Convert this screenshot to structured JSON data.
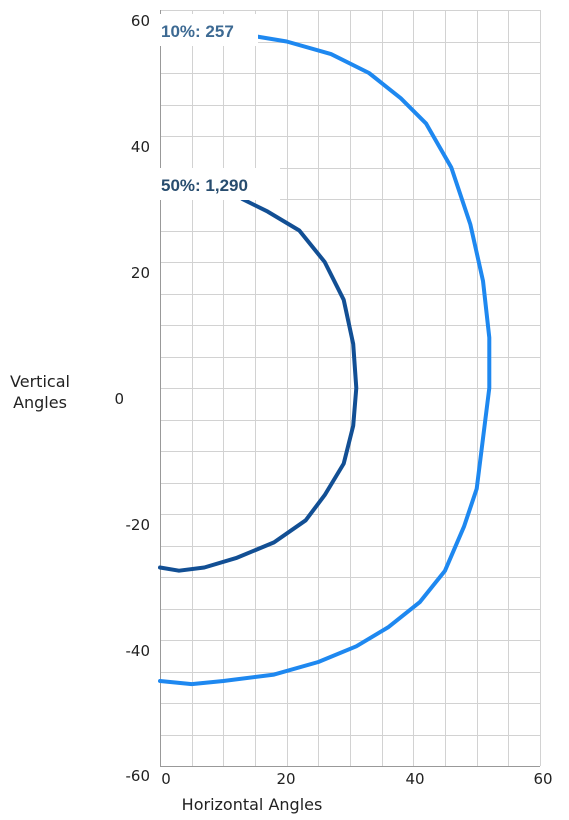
{
  "chart_data": {
    "type": "line",
    "xlabel": "Horizontal Angles",
    "ylabel": [
      "Vertical",
      "Angles"
    ],
    "xlim": [
      0,
      60
    ],
    "ylim": [
      -60,
      60
    ],
    "grid": true,
    "x_ticks": [
      "0",
      "20",
      "40",
      "60"
    ],
    "y_ticks": [
      "60",
      "40",
      "20",
      "0",
      "-20",
      "-40",
      "-60"
    ],
    "series": [
      {
        "name": "10%: 257",
        "color": "#1e88f0",
        "points": [
          [
            14,
            56
          ],
          [
            20,
            55
          ],
          [
            27,
            53
          ],
          [
            33,
            50
          ],
          [
            38,
            46
          ],
          [
            42,
            42
          ],
          [
            46,
            35
          ],
          [
            49,
            26
          ],
          [
            51,
            17
          ],
          [
            52,
            8
          ],
          [
            52,
            0
          ],
          [
            51,
            -8
          ],
          [
            50,
            -16
          ],
          [
            48,
            -22
          ],
          [
            45,
            -29
          ],
          [
            41,
            -34
          ],
          [
            36,
            -38
          ],
          [
            31,
            -41
          ],
          [
            25,
            -43.5
          ],
          [
            18,
            -45.5
          ],
          [
            10,
            -46.5
          ],
          [
            5,
            -47
          ],
          [
            0,
            -46.5
          ]
        ]
      },
      {
        "name": "50%: 1,290",
        "color": "#124f94",
        "points": [
          [
            13,
            30
          ],
          [
            17,
            28
          ],
          [
            22,
            25
          ],
          [
            26,
            20
          ],
          [
            29,
            14
          ],
          [
            30.5,
            7
          ],
          [
            31,
            0
          ],
          [
            30.5,
            -6
          ],
          [
            29,
            -12
          ],
          [
            26,
            -17
          ],
          [
            23,
            -21
          ],
          [
            18,
            -24.5
          ],
          [
            12,
            -27
          ],
          [
            7,
            -28.5
          ],
          [
            3,
            -29
          ],
          [
            0,
            -28.5
          ]
        ]
      }
    ]
  }
}
